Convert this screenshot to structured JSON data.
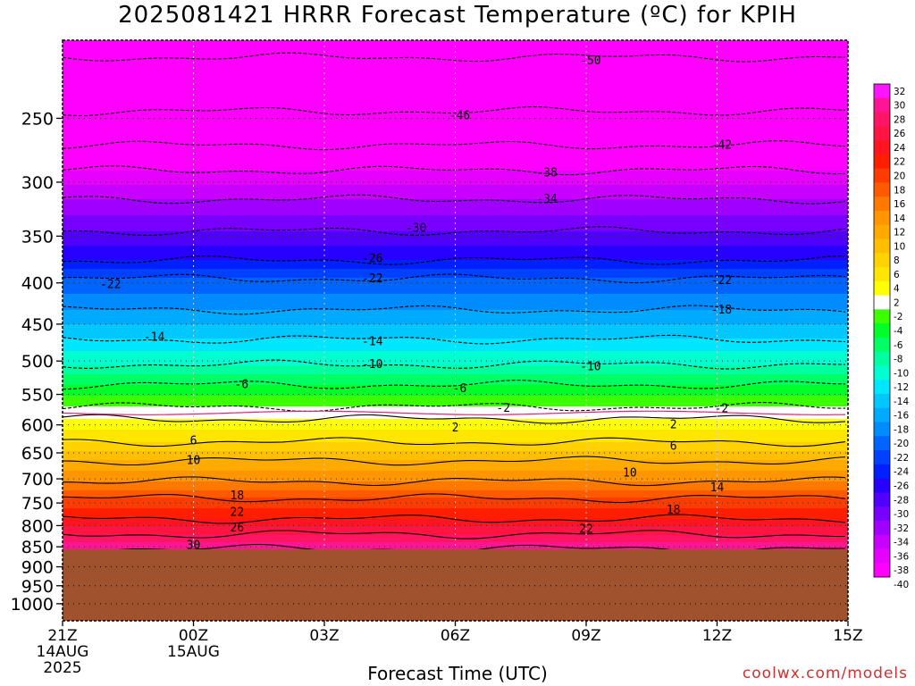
{
  "chart_data": {
    "type": "heatmap",
    "title": "2025081421 HRRR Forecast Temperature (ºC) for KPIH",
    "xlabel": "Forecast Time (UTC)",
    "ylabel": "",
    "x_ticks": [
      {
        "hour": 0,
        "label": "21Z",
        "date": "14AUG",
        "year": "2025"
      },
      {
        "hour": 3,
        "label": "00Z",
        "date": "15AUG"
      },
      {
        "hour": 6,
        "label": "03Z"
      },
      {
        "hour": 9,
        "label": "06Z"
      },
      {
        "hour": 12,
        "label": "09Z"
      },
      {
        "hour": 15,
        "label": "12Z"
      },
      {
        "hour": 18,
        "label": "15Z"
      }
    ],
    "xlim": [
      0,
      18
    ],
    "y_scale": "log-pressure",
    "y_ticks": [
      250,
      300,
      350,
      400,
      450,
      500,
      550,
      600,
      650,
      700,
      750,
      800,
      850,
      900,
      950,
      1000
    ],
    "ylim": [
      1050,
      200
    ],
    "ground_level_hpa": 862,
    "colorbar": {
      "ticks": [
        32,
        30,
        28,
        26,
        24,
        22,
        20,
        18,
        16,
        14,
        12,
        10,
        8,
        6,
        4,
        2,
        -2,
        -4,
        -6,
        -8,
        -10,
        -12,
        -14,
        -16,
        -18,
        -20,
        -22,
        -24,
        -26,
        -28,
        -30,
        -32,
        -34,
        -36,
        -38,
        -40
      ],
      "colors": [
        "#ff14ff",
        "#ff1493",
        "#ff1466",
        "#ff1444",
        "#ff1420",
        "#ff1e00",
        "#ff3c00",
        "#ff5a00",
        "#ff7800",
        "#ff9600",
        "#ffaa00",
        "#ffbe00",
        "#ffd200",
        "#ffe600",
        "#ffff00",
        "#ffffff",
        "#3cff00",
        "#00ff28",
        "#00ff64",
        "#00ffa0",
        "#00ffd0",
        "#00e6ff",
        "#00c8ff",
        "#00aaff",
        "#008cff",
        "#0064ff",
        "#0040ff",
        "#0020ff",
        "#2800ff",
        "#5000ff",
        "#7800ff",
        "#a000ff",
        "#c800ff",
        "#e600ff",
        "#ff00ff"
      ]
    },
    "temperature_profile": [
      {
        "pressure": 210,
        "temp": -50
      },
      {
        "pressure": 245,
        "temp": -46
      },
      {
        "pressure": 270,
        "temp": -42
      },
      {
        "pressure": 290,
        "temp": -38
      },
      {
        "pressure": 315,
        "temp": -34
      },
      {
        "pressure": 345,
        "temp": -30
      },
      {
        "pressure": 375,
        "temp": -26
      },
      {
        "pressure": 395,
        "temp": -22
      },
      {
        "pressure": 432,
        "temp": -18
      },
      {
        "pressure": 470,
        "temp": -14
      },
      {
        "pressure": 505,
        "temp": -10
      },
      {
        "pressure": 535,
        "temp": -6
      },
      {
        "pressure": 570,
        "temp": -2
      },
      {
        "pressure": 590,
        "temp": 2
      },
      {
        "pressure": 630,
        "temp": 6
      },
      {
        "pressure": 665,
        "temp": 10
      },
      {
        "pressure": 705,
        "temp": 14
      },
      {
        "pressure": 740,
        "temp": 18
      },
      {
        "pressure": 785,
        "temp": 22
      },
      {
        "pressure": 820,
        "temp": 26
      },
      {
        "pressure": 855,
        "temp": 30
      }
    ],
    "contour_labels": [
      {
        "hour": 12.1,
        "pressure": 212,
        "text": "-50"
      },
      {
        "hour": 9.1,
        "pressure": 248,
        "text": "-46"
      },
      {
        "hour": 15.1,
        "pressure": 270,
        "text": "-42"
      },
      {
        "hour": 11.1,
        "pressure": 292,
        "text": "-38"
      },
      {
        "hour": 11.1,
        "pressure": 315,
        "text": "-34"
      },
      {
        "hour": 8.1,
        "pressure": 342,
        "text": "-30"
      },
      {
        "hour": 7.1,
        "pressure": 373,
        "text": "-26"
      },
      {
        "hour": 1.1,
        "pressure": 402,
        "text": "-22"
      },
      {
        "hour": 7.1,
        "pressure": 395,
        "text": "-22"
      },
      {
        "hour": 15.1,
        "pressure": 397,
        "text": "-22"
      },
      {
        "hour": 15.1,
        "pressure": 432,
        "text": "-18"
      },
      {
        "hour": 2.1,
        "pressure": 467,
        "text": "-14"
      },
      {
        "hour": 7.1,
        "pressure": 473,
        "text": "-14"
      },
      {
        "hour": 7.1,
        "pressure": 505,
        "text": "-10"
      },
      {
        "hour": 12.1,
        "pressure": 508,
        "text": "-10"
      },
      {
        "hour": 4.1,
        "pressure": 535,
        "text": "-6"
      },
      {
        "hour": 9.1,
        "pressure": 541,
        "text": "-6"
      },
      {
        "hour": 10.1,
        "pressure": 572,
        "text": "-2"
      },
      {
        "hour": 15.1,
        "pressure": 573,
        "text": "-2"
      },
      {
        "hour": 9.0,
        "pressure": 605,
        "text": "2"
      },
      {
        "hour": 14.0,
        "pressure": 600,
        "text": "2"
      },
      {
        "hour": 3.0,
        "pressure": 628,
        "text": "6"
      },
      {
        "hour": 14.0,
        "pressure": 638,
        "text": "6"
      },
      {
        "hour": 3.0,
        "pressure": 664,
        "text": "10"
      },
      {
        "hour": 13.0,
        "pressure": 688,
        "text": "10"
      },
      {
        "hour": 15.0,
        "pressure": 718,
        "text": "14"
      },
      {
        "hour": 4.0,
        "pressure": 735,
        "text": "18"
      },
      {
        "hour": 14.0,
        "pressure": 765,
        "text": "18"
      },
      {
        "hour": 4.0,
        "pressure": 770,
        "text": "22"
      },
      {
        "hour": 12.0,
        "pressure": 808,
        "text": "22"
      },
      {
        "hour": 4.0,
        "pressure": 805,
        "text": "26"
      },
      {
        "hour": 3.0,
        "pressure": 846,
        "text": "30"
      }
    ]
  },
  "credit": "coolwx.com/models"
}
